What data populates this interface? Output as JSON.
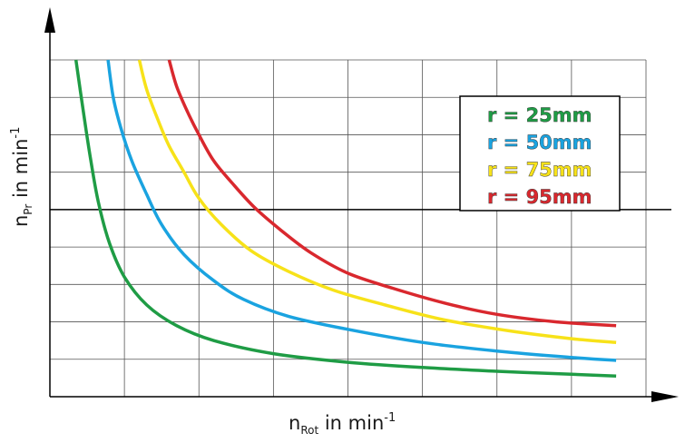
{
  "chart_data": {
    "type": "line",
    "title": "",
    "xlabel": {
      "base": "n",
      "sub": "Rot",
      "rest": " in min",
      "sup": "-1"
    },
    "ylabel": {
      "base": "n",
      "sub": "Pr",
      "rest": " in min",
      "sup": "-1"
    },
    "xlim": [
      0,
      8
    ],
    "ylim": [
      0,
      9
    ],
    "grid": true,
    "reference_line_y": 5,
    "legend_position": "top-right",
    "series": [
      {
        "name": "r = 25mm",
        "color": "#1f9c45",
        "x": [
          0.35,
          0.45,
          0.55,
          0.65,
          0.8,
          1.0,
          1.3,
          1.7,
          2.2,
          3.0,
          4.0,
          5.0,
          6.0,
          7.0,
          7.6
        ],
        "y": [
          9.0,
          7.6,
          6.3,
          5.2,
          4.1,
          3.2,
          2.45,
          1.9,
          1.5,
          1.15,
          0.92,
          0.78,
          0.68,
          0.6,
          0.55
        ]
      },
      {
        "name": "r = 50mm",
        "color": "#1aa3e0",
        "x": [
          0.78,
          0.85,
          0.95,
          1.1,
          1.3,
          1.5,
          1.8,
          2.2,
          2.6,
          3.2,
          4.0,
          5.0,
          6.0,
          7.0,
          7.6
        ],
        "y": [
          9.0,
          8.0,
          7.2,
          6.3,
          5.4,
          4.6,
          3.8,
          3.1,
          2.6,
          2.15,
          1.8,
          1.45,
          1.22,
          1.05,
          0.97
        ]
      },
      {
        "name": "r = 75mm",
        "color": "#f7e219",
        "x": [
          1.2,
          1.3,
          1.45,
          1.6,
          1.8,
          2.0,
          2.3,
          2.7,
          3.2,
          3.8,
          4.5,
          5.3,
          6.2,
          7.0,
          7.6
        ],
        "y": [
          9.0,
          8.2,
          7.4,
          6.7,
          6.0,
          5.3,
          4.6,
          3.9,
          3.35,
          2.85,
          2.45,
          2.05,
          1.75,
          1.55,
          1.45
        ]
      },
      {
        "name": "r = 95mm",
        "color": "#d9282e",
        "x": [
          1.6,
          1.7,
          1.85,
          2.0,
          2.2,
          2.45,
          2.75,
          3.1,
          3.5,
          4.0,
          4.6,
          5.3,
          6.0,
          6.8,
          7.6
        ],
        "y": [
          9.0,
          8.3,
          7.6,
          7.0,
          6.3,
          5.7,
          5.05,
          4.45,
          3.85,
          3.3,
          2.9,
          2.5,
          2.2,
          2.0,
          1.9
        ]
      }
    ]
  }
}
